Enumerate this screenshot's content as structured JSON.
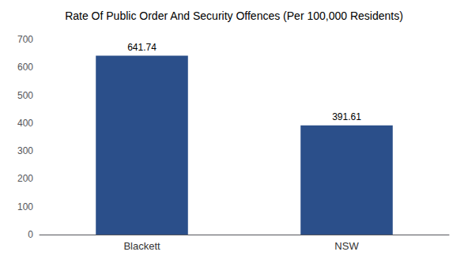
{
  "chart_data": {
    "type": "bar",
    "title": "Rate Of Public Order And Security Offences (Per 100,000 Residents)",
    "categories": [
      "Blackett",
      "NSW"
    ],
    "values": [
      641.74,
      391.61
    ],
    "color": "#2b4f8a",
    "ylim": [
      0,
      700
    ],
    "yticks": [
      0,
      100,
      200,
      300,
      400,
      500,
      600,
      700
    ],
    "grid": false,
    "data_labels": true
  }
}
